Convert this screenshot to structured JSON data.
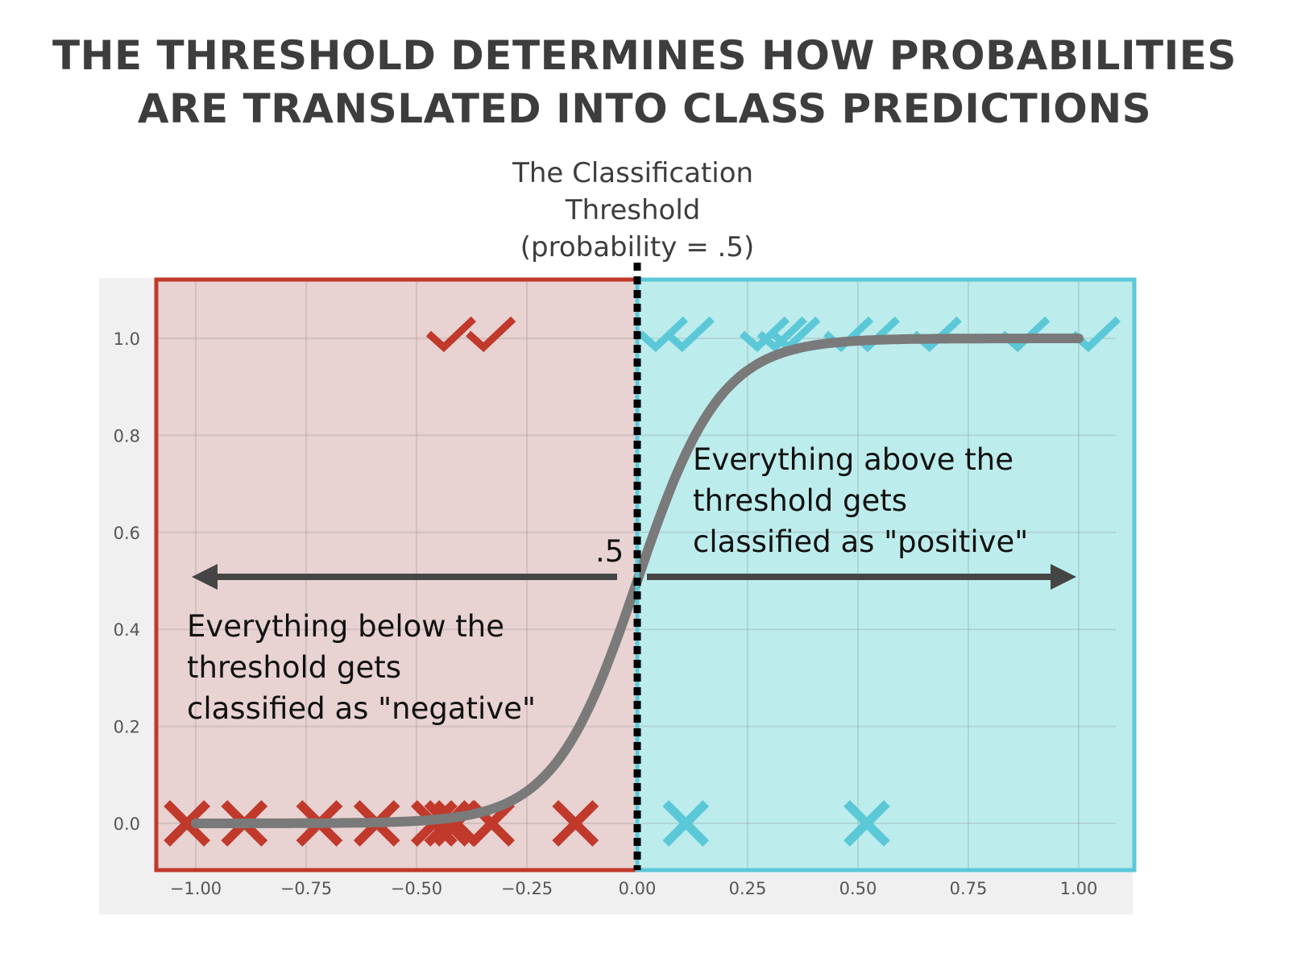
{
  "title_lines": [
    "THE THRESHOLD DETERMINES HOW PROBABILITIES",
    "ARE TRANSLATED INTO CLASS PREDICTIONS"
  ],
  "threshold_label_lines": [
    "The Classification",
    "Threshold",
    "(probability = .5)"
  ],
  "half_label": ".5",
  "negative_text_lines": [
    "Everything below the",
    "threshold gets",
    "classified as \"negative\""
  ],
  "positive_text_lines": [
    "Everything above the",
    "threshold gets",
    "classified as \"positive\""
  ],
  "colors": {
    "negative": "#c0392b",
    "negative_fill": "#e8d2d2",
    "positive": "#5bc8d8",
    "positive_fill": "#bdecec",
    "curve": "#7a7a7a",
    "arrow": "#454545",
    "title": "#3d3d3d",
    "plot_bg": "#f0f0f0"
  },
  "chart_data": {
    "type": "scatter",
    "xlim": [
      -1.12,
      1.12
    ],
    "ylim": [
      -0.09,
      1.12
    ],
    "x_ticks": [
      -1.0,
      -0.75,
      -0.5,
      -0.25,
      0.0,
      0.25,
      0.5,
      0.75,
      1.0
    ],
    "x_tick_labels": [
      "−1.00",
      "−0.75",
      "−0.50",
      "−0.25",
      "0.00",
      "0.25",
      "0.50",
      "0.75",
      "1.00"
    ],
    "y_ticks": [
      0.0,
      0.2,
      0.4,
      0.6,
      0.8,
      1.0
    ],
    "y_tick_labels": [
      "0.0",
      "0.2",
      "0.4",
      "0.6",
      "0.8",
      "1.0"
    ],
    "grid": true,
    "threshold_x": 0.0,
    "threshold_probability": 0.5,
    "curve": {
      "type": "logistic",
      "midpoint": 0.0,
      "steepness": 10.6
    },
    "series": [
      {
        "marker": "check",
        "color_key": "negative",
        "y": 1,
        "x": [
          -0.42,
          -0.33
        ]
      },
      {
        "marker": "check",
        "color_key": "positive",
        "y": 1,
        "x": [
          0.06,
          0.12,
          0.29,
          0.33,
          0.36,
          0.48,
          0.54,
          0.68,
          0.88,
          1.04
        ]
      },
      {
        "marker": "cross",
        "color_key": "negative",
        "y": 0,
        "x": [
          -1.02,
          -0.89,
          -0.72,
          -0.59,
          -0.46,
          -0.43,
          -0.41,
          -0.33,
          -0.14
        ]
      },
      {
        "marker": "cross",
        "color_key": "positive",
        "y": 0,
        "x": [
          0.11,
          0.52
        ]
      }
    ]
  }
}
